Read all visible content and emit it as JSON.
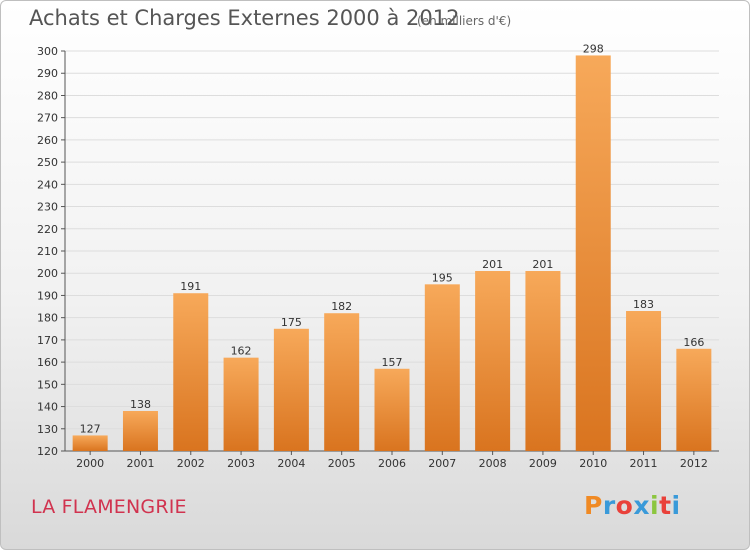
{
  "header": {
    "title": "Achats et Charges Externes 2000 à 2012",
    "subtitle": "(en milliers d'€)"
  },
  "footer": {
    "city": "LA FLAMENGRIE",
    "logo_text": "Proxiti"
  },
  "colors": {
    "bar_top": "#f7a95a",
    "bar_bottom": "#d9741f",
    "city": "#d1334f",
    "grid": "#dddddd"
  },
  "chart_data": {
    "type": "bar",
    "title": "Achats et Charges Externes 2000 à 2012",
    "subtitle": "(en milliers d'€)",
    "xlabel": "",
    "ylabel": "",
    "categories": [
      "2000",
      "2001",
      "2002",
      "2003",
      "2004",
      "2005",
      "2006",
      "2007",
      "2008",
      "2009",
      "2010",
      "2011",
      "2012"
    ],
    "values": [
      127,
      138,
      191,
      162,
      175,
      182,
      157,
      195,
      201,
      201,
      298,
      183,
      166
    ],
    "ylim": [
      120,
      300
    ],
    "yticks": [
      120,
      130,
      140,
      150,
      160,
      170,
      180,
      190,
      200,
      210,
      220,
      230,
      240,
      250,
      260,
      270,
      280,
      290,
      300
    ],
    "grid": true,
    "legend": "none"
  }
}
